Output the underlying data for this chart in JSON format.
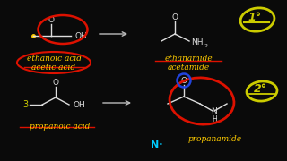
{
  "background_color": "#0a0a0a",
  "top_left": {
    "structure_label1": "ethanoic acid",
    "structure_label2": "acetic acid",
    "label_color": "#ffcc00",
    "circle_color": "#dd1100",
    "dot_color": "#ffcc00"
  },
  "top_right": {
    "structure_label1": "ethanamide",
    "structure_label2": "acetamide",
    "label_color": "#ffcc00",
    "degree_text": "1°",
    "degree_color": "#cccc00",
    "underline_color": "#cc1100"
  },
  "bottom_left": {
    "structure_label": "propanoic acid",
    "label_color": "#ffcc00",
    "num3_color": "#cccc00",
    "cross_color": "#dd1100"
  },
  "bottom_right": {
    "structure_label": "propanamide",
    "label_color": "#ffcc00",
    "degree_text": "2°",
    "degree_color": "#cccc00",
    "circle_color": "#dd1100",
    "n_color": "#00ccff",
    "o_circle_color": "#2244dd"
  },
  "arrow_color": "#bbbbbb",
  "white": "#dddddd"
}
